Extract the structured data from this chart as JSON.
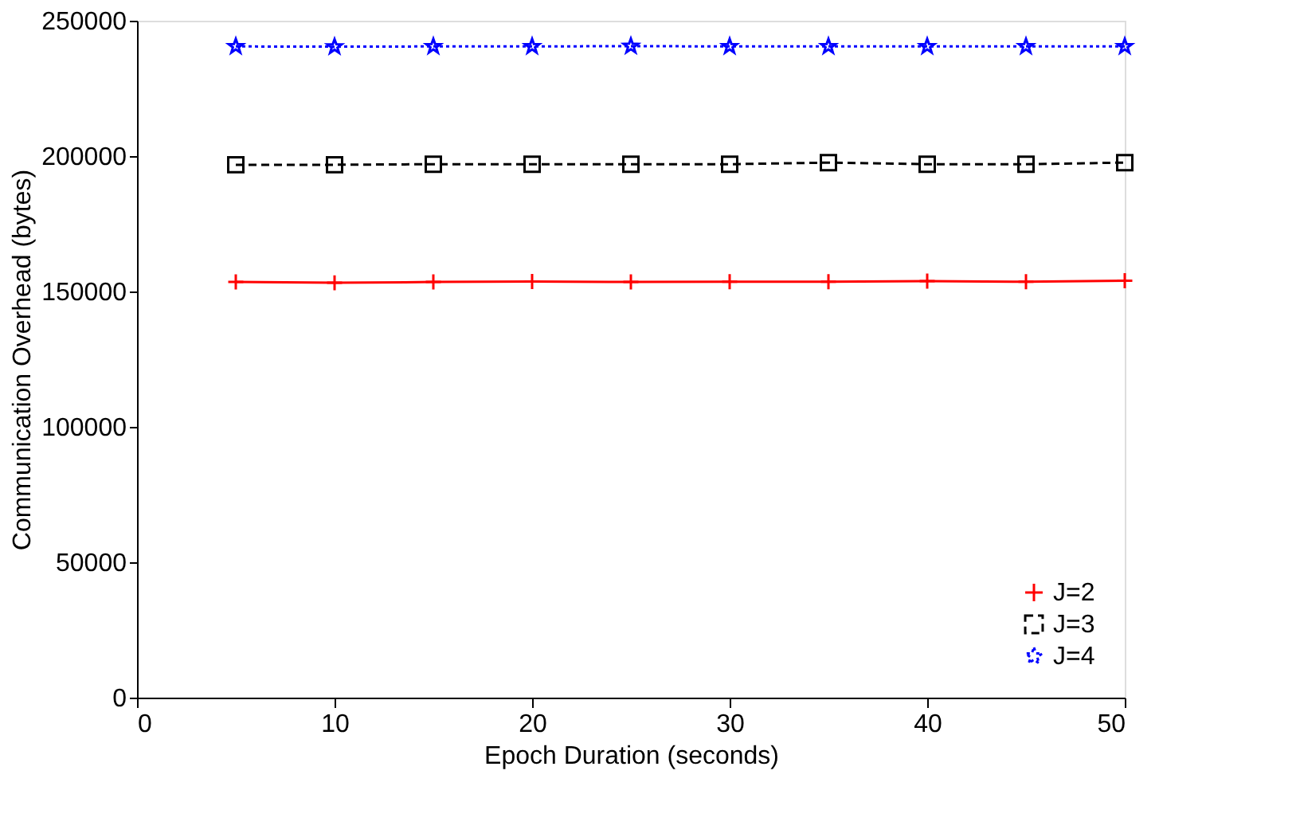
{
  "chart_data": {
    "type": "line",
    "xlabel": "Epoch Duration (seconds)",
    "ylabel": "Communication Overhead (bytes)",
    "x": [
      5,
      10,
      15,
      20,
      25,
      30,
      35,
      40,
      45,
      50
    ],
    "series": [
      {
        "name": "J=2",
        "color": "#ff0000",
        "marker": "cross",
        "line_style": "solid",
        "values": [
          153500,
          153200,
          153500,
          153700,
          153500,
          153600,
          153600,
          153800,
          153600,
          154000
        ]
      },
      {
        "name": "J=3",
        "color": "#000000",
        "marker": "square",
        "line_style": "dashed",
        "values": [
          196800,
          196800,
          197000,
          197000,
          197000,
          197000,
          197600,
          197000,
          197000,
          197600
        ]
      },
      {
        "name": "J=4",
        "color": "#0000ff",
        "marker": "star",
        "line_style": "dotted",
        "values": [
          240500,
          240400,
          240500,
          240500,
          240600,
          240500,
          240500,
          240500,
          240500,
          240500
        ]
      }
    ],
    "xlim": [
      0,
      50
    ],
    "xticks": [
      0,
      10,
      20,
      30,
      40,
      50
    ],
    "ylim": [
      0,
      250000
    ],
    "yticks": [
      0,
      50000,
      100000,
      150000,
      200000,
      250000
    ],
    "grid": false,
    "legend": "bottom right"
  }
}
